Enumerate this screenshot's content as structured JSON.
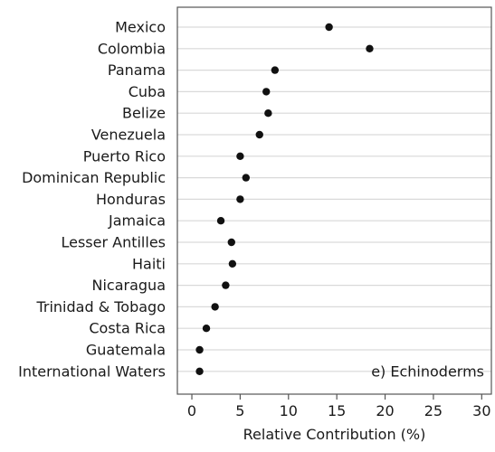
{
  "chart_data": {
    "type": "scatter",
    "title": "",
    "xlabel": "Relative Contribution (%)",
    "ylabel": "",
    "xlim": [
      -1.5,
      31
    ],
    "xticks": [
      0,
      5,
      10,
      15,
      20,
      25,
      30
    ],
    "grid": "horizontal",
    "annotation": "e) Echinoderms",
    "categories": [
      "Mexico",
      "Colombia",
      "Panama",
      "Cuba",
      "Belize",
      "Venezuela",
      "Puerto Rico",
      "Dominican Republic",
      "Honduras",
      "Jamaica",
      "Lesser Antilles",
      "Haiti",
      "Nicaragua",
      "Trinidad & Tobago",
      "Costa Rica",
      "Guatemala",
      "International Waters"
    ],
    "values": [
      14.2,
      18.4,
      8.6,
      7.7,
      7.9,
      7.0,
      5.0,
      5.6,
      5.0,
      3.0,
      4.1,
      4.2,
      3.5,
      2.4,
      1.5,
      0.8,
      0.8
    ],
    "point_color": "#111111",
    "grid_color": "#d9d9d9",
    "axis_color": "#555555"
  }
}
